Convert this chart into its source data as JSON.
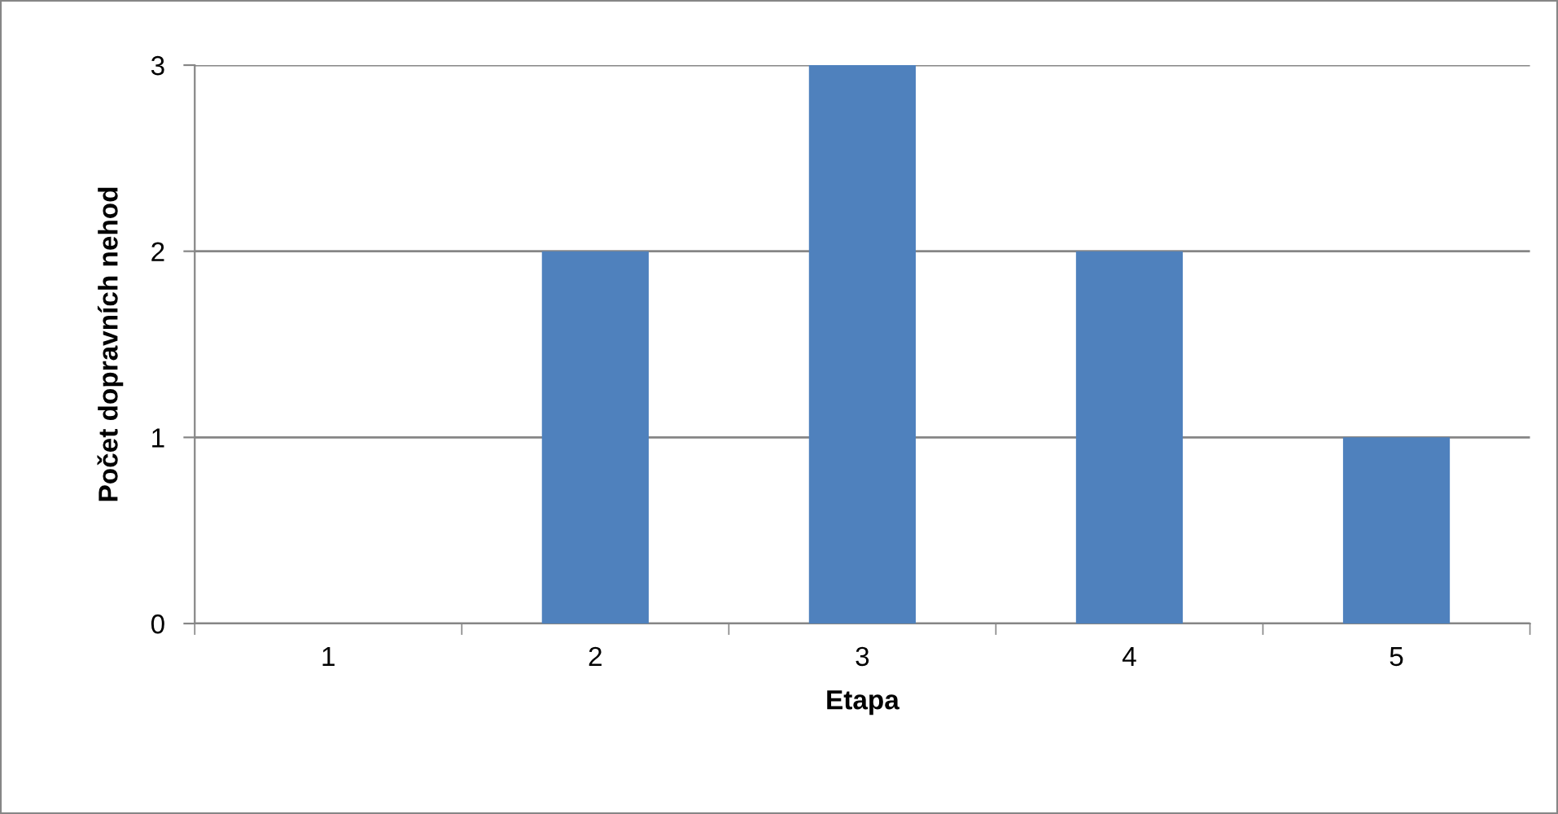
{
  "chart_data": {
    "type": "bar",
    "xlabel": "Etapa",
    "ylabel": "Počet dopravních nehod",
    "categories": [
      "1",
      "2",
      "3",
      "4",
      "5"
    ],
    "values": [
      0,
      2,
      3,
      2,
      1
    ],
    "color": "#4f81bd",
    "ylim": [
      0,
      3
    ],
    "yticks": [
      0,
      1,
      2,
      3
    ],
    "grid": "y",
    "legend": false
  }
}
